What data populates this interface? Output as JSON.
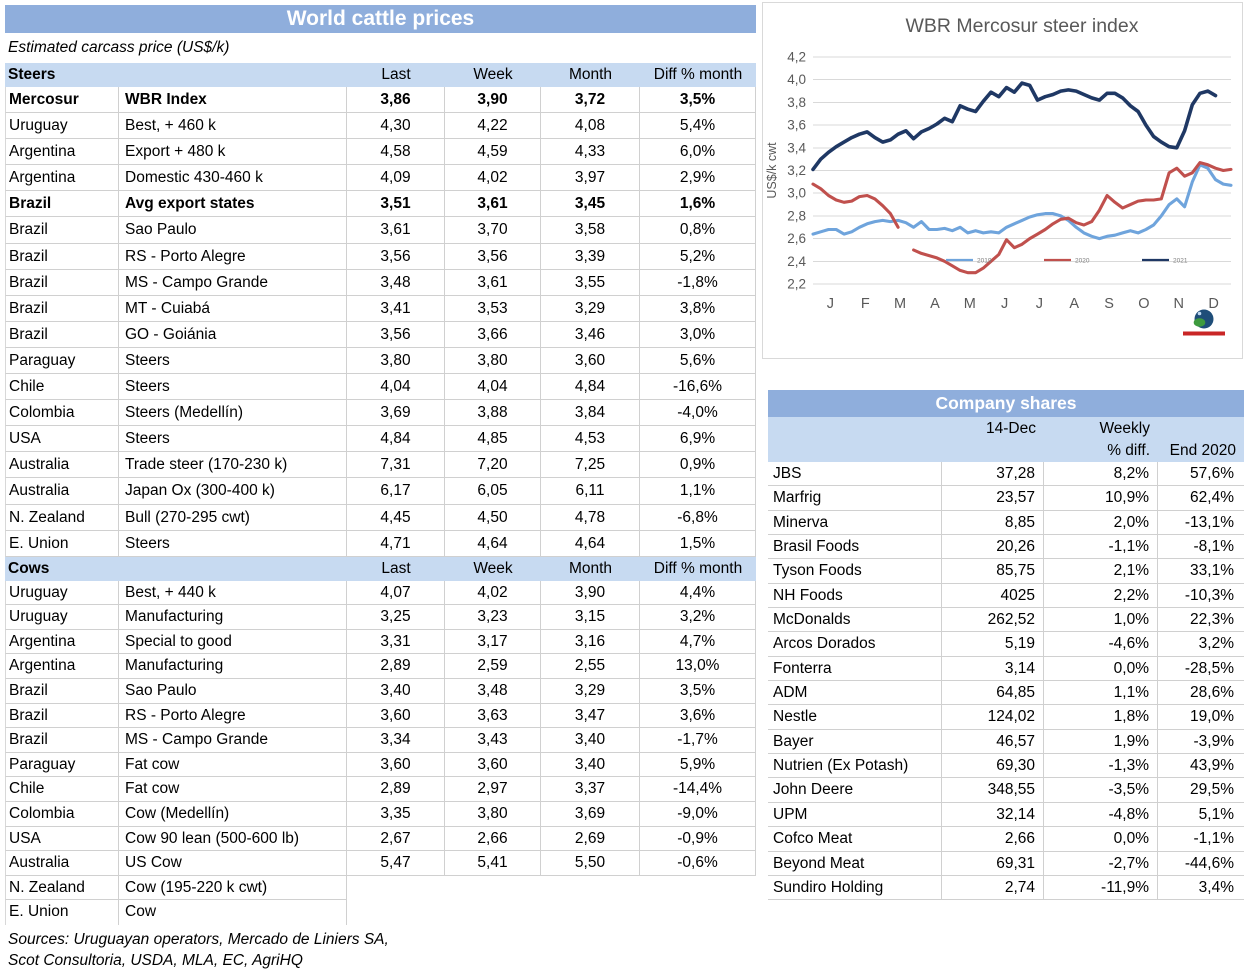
{
  "cattle_table": {
    "title": "World cattle prices",
    "subtitle": "Estimated carcass price (US$/k)",
    "columns": [
      "Last",
      "Week",
      "Month",
      "Diff % month"
    ],
    "sections": [
      {
        "name": "Steers",
        "rows": [
          {
            "country": "Mercosur",
            "item": "WBR Index",
            "last": "3,86",
            "week": "3,90",
            "month": "3,72",
            "diff": "3,5%",
            "bold": true
          },
          {
            "country": "Uruguay",
            "item": "Best, + 460 k",
            "last": "4,30",
            "week": "4,22",
            "month": "4,08",
            "diff": "5,4%"
          },
          {
            "country": "Argentina",
            "item": "Export + 480 k",
            "last": "4,58",
            "week": "4,59",
            "month": "4,33",
            "diff": "6,0%"
          },
          {
            "country": "Argentina",
            "item": "Domestic 430-460 k",
            "last": "4,09",
            "week": "4,02",
            "month": "3,97",
            "diff": "2,9%"
          },
          {
            "country": "Brazil",
            "item": "Avg export states",
            "last": "3,51",
            "week": "3,61",
            "month": "3,45",
            "diff": "1,6%",
            "bold": true
          },
          {
            "country": "Brazil",
            "item": "Sao Paulo",
            "last": "3,61",
            "week": "3,70",
            "month": "3,58",
            "diff": "0,8%"
          },
          {
            "country": "Brazil",
            "item": "RS - Porto Alegre",
            "last": "3,56",
            "week": "3,56",
            "month": "3,39",
            "diff": "5,2%"
          },
          {
            "country": "Brazil",
            "item": "MS - Campo Grande",
            "last": "3,48",
            "week": "3,61",
            "month": "3,55",
            "diff": "-1,8%"
          },
          {
            "country": "Brazil",
            "item": "MT - Cuiabá",
            "last": "3,41",
            "week": "3,53",
            "month": "3,29",
            "diff": "3,8%"
          },
          {
            "country": "Brazil",
            "item": "GO - Goiánia",
            "last": "3,56",
            "week": "3,66",
            "month": "3,46",
            "diff": "3,0%"
          },
          {
            "country": "Paraguay",
            "item": "Steers",
            "last": "3,80",
            "week": "3,80",
            "month": "3,60",
            "diff": "5,6%"
          },
          {
            "country": "Chile",
            "item": "Steers",
            "last": "4,04",
            "week": "4,04",
            "month": "4,84",
            "diff": "-16,6%"
          },
          {
            "country": "Colombia",
            "item": "Steers (Medellín)",
            "last": "3,69",
            "week": "3,88",
            "month": "3,84",
            "diff": "-4,0%"
          },
          {
            "country": "USA",
            "item": "Steers",
            "last": "4,84",
            "week": "4,85",
            "month": "4,53",
            "diff": "6,9%"
          },
          {
            "country": "Australia",
            "item": "Trade steer (170-230 k)",
            "last": "7,31",
            "week": "7,20",
            "month": "7,25",
            "diff": "0,9%"
          },
          {
            "country": "Australia",
            "item": "Japan Ox (300-400 k)",
            "last": "6,17",
            "week": "6,05",
            "month": "6,11",
            "diff": "1,1%"
          },
          {
            "country": "N. Zealand",
            "item": "Bull (270-295 cwt)",
            "last": "4,45",
            "week": "4,50",
            "month": "4,78",
            "diff": "-6,8%"
          },
          {
            "country": "E. Union",
            "item": "Steers",
            "last": "4,71",
            "week": "4,64",
            "month": "4,64",
            "diff": "1,5%"
          }
        ]
      },
      {
        "name": "Cows",
        "rows": [
          {
            "country": "Uruguay",
            "item": "Best, + 440 k",
            "last": "4,07",
            "week": "4,02",
            "month": "3,90",
            "diff": "4,4%"
          },
          {
            "country": "Uruguay",
            "item": "Manufacturing",
            "last": "3,25",
            "week": "3,23",
            "month": "3,15",
            "diff": "3,2%"
          },
          {
            "country": "Argentina",
            "item": "Special to good",
            "last": "3,31",
            "week": "3,17",
            "month": "3,16",
            "diff": "4,7%"
          },
          {
            "country": "Argentina",
            "item": "Manufacturing",
            "last": "2,89",
            "week": "2,59",
            "month": "2,55",
            "diff": "13,0%"
          },
          {
            "country": "Brazil",
            "item": "Sao Paulo",
            "last": "3,40",
            "week": "3,48",
            "month": "3,29",
            "diff": "3,5%"
          },
          {
            "country": "Brazil",
            "item": "RS - Porto Alegre",
            "last": "3,60",
            "week": "3,63",
            "month": "3,47",
            "diff": "3,6%"
          },
          {
            "country": "Brazil",
            "item": "MS - Campo Grande",
            "last": "3,34",
            "week": "3,43",
            "month": "3,40",
            "diff": "-1,7%"
          },
          {
            "country": "Paraguay",
            "item": "Fat cow",
            "last": "3,60",
            "week": "3,60",
            "month": "3,40",
            "diff": "5,9%"
          },
          {
            "country": "Chile",
            "item": "Fat cow",
            "last": "2,89",
            "week": "2,97",
            "month": "3,37",
            "diff": "-14,4%"
          },
          {
            "country": "Colombia",
            "item": "Cow (Medellín)",
            "last": "3,35",
            "week": "3,80",
            "month": "3,69",
            "diff": "-9,0%"
          },
          {
            "country": "USA",
            "item": "Cow 90 lean (500-600 lb)",
            "last": "2,67",
            "week": "2,66",
            "month": "2,69",
            "diff": "-0,9%"
          },
          {
            "country": "Australia",
            "item": "US Cow",
            "last": "5,47",
            "week": "5,41",
            "month": "5,50",
            "diff": "-0,6%"
          },
          {
            "country": "N. Zealand",
            "item": "Cow (195-220 k cwt)",
            "partial": true
          },
          {
            "country": "E. Union",
            "item": "Cow",
            "partial": true,
            "no_bottom": true
          }
        ]
      }
    ],
    "sources": [
      "Sources: Uruguayan operators, Mercado de Liniers SA,",
      "Scot Consultoria, USDA, MLA, EC, AgriHQ"
    ]
  },
  "chart_data": {
    "type": "line",
    "title": "WBR Mercosur steer index",
    "ylabel": "US$/k cwt",
    "xlabel": "",
    "x_tick_labels": [
      "J",
      "F",
      "M",
      "A",
      "M",
      "J",
      "J",
      "A",
      "S",
      "O",
      "N",
      "D"
    ],
    "y_ticks": [
      "4,2",
      "4,0",
      "3,8",
      "3,6",
      "3,4",
      "3,2",
      "3,0",
      "2,8",
      "2,6",
      "2,4",
      "2,2"
    ],
    "ylim": [
      2.2,
      4.2
    ],
    "ytick_step": 0.2,
    "grid": true,
    "legend_position": "inside-bottom-right",
    "series": [
      {
        "name": "2019",
        "color": "#6FA4DC",
        "values": [
          2.64,
          2.66,
          2.68,
          2.68,
          2.64,
          2.66,
          2.7,
          2.73,
          2.75,
          2.76,
          2.75,
          2.76,
          2.74,
          2.7,
          2.75,
          2.68,
          2.68,
          2.69,
          2.67,
          2.7,
          2.65,
          2.67,
          2.65,
          2.66,
          2.65,
          2.7,
          2.73,
          2.76,
          2.79,
          2.81,
          2.82,
          2.82,
          2.8,
          2.76,
          2.7,
          2.65,
          2.62,
          2.6,
          2.62,
          2.63,
          2.65,
          2.67,
          2.65,
          2.68,
          2.72,
          2.8,
          2.9,
          2.95,
          2.88,
          3.1,
          3.25,
          3.22,
          3.12,
          3.08,
          3.07
        ]
      },
      {
        "name": "2020",
        "color": "#C0504D",
        "values": [
          3.08,
          3.04,
          2.98,
          2.94,
          2.92,
          2.93,
          2.97,
          2.98,
          2.95,
          2.89,
          2.82,
          2.7,
          null,
          2.5,
          2.47,
          2.45,
          2.43,
          2.4,
          2.36,
          2.32,
          2.3,
          2.3,
          2.34,
          2.4,
          2.46,
          2.59,
          2.52,
          2.55,
          2.6,
          2.64,
          2.68,
          2.73,
          2.77,
          2.78,
          2.74,
          2.72,
          2.75,
          2.85,
          2.98,
          2.92,
          2.87,
          2.9,
          2.93,
          2.94,
          2.94,
          2.95,
          3.18,
          3.22,
          3.15,
          3.18,
          3.27,
          3.25,
          3.22,
          3.2,
          3.21
        ]
      },
      {
        "name": "2021",
        "color": "#1F3864",
        "values": [
          3.21,
          3.3,
          3.36,
          3.41,
          3.45,
          3.49,
          3.52,
          3.54,
          3.49,
          3.45,
          3.47,
          3.52,
          3.55,
          3.48,
          3.54,
          3.57,
          3.61,
          3.66,
          3.63,
          3.77,
          3.74,
          3.72,
          3.81,
          3.89,
          3.85,
          3.93,
          3.89,
          3.97,
          3.95,
          3.82,
          3.85,
          3.87,
          3.9,
          3.91,
          3.9,
          3.87,
          3.84,
          3.82,
          3.88,
          3.88,
          3.84,
          3.77,
          3.72,
          3.6,
          3.5,
          3.45,
          3.41,
          3.4,
          3.55,
          3.78,
          3.88,
          3.9,
          3.86,
          null,
          null
        ]
      }
    ]
  },
  "company_table": {
    "title": "Company shares",
    "header": {
      "date": "14-Dec",
      "weekly1": "Weekly",
      "weekly2": "% diff.",
      "end2020": "End 2020"
    },
    "rows": [
      {
        "name": "JBS",
        "value": "37,28",
        "weekly": "8,2%",
        "end": "57,6%"
      },
      {
        "name": "Marfrig",
        "value": "23,57",
        "weekly": "10,9%",
        "end": "62,4%"
      },
      {
        "name": "Minerva",
        "value": "8,85",
        "weekly": "2,0%",
        "end": "-13,1%"
      },
      {
        "name": "Brasil Foods",
        "value": "20,26",
        "weekly": "-1,1%",
        "end": "-8,1%"
      },
      {
        "name": "Tyson Foods",
        "value": "85,75",
        "weekly": "2,1%",
        "end": "33,1%"
      },
      {
        "name": "NH Foods",
        "value": "4025",
        "weekly": "2,2%",
        "end": "-10,3%"
      },
      {
        "name": "McDonalds",
        "value": "262,52",
        "weekly": "1,0%",
        "end": "22,3%"
      },
      {
        "name": "Arcos Dorados",
        "value": "5,19",
        "weekly": "-4,6%",
        "end": "3,2%"
      },
      {
        "name": "Fonterra",
        "value": "3,14",
        "weekly": "0,0%",
        "end": "-28,5%"
      },
      {
        "name": "ADM",
        "value": "64,85",
        "weekly": "1,1%",
        "end": "28,6%"
      },
      {
        "name": "Nestle",
        "value": "124,02",
        "weekly": "1,8%",
        "end": "19,0%"
      },
      {
        "name": "Bayer",
        "value": "46,57",
        "weekly": "1,9%",
        "end": "-3,9%"
      },
      {
        "name": "Nutrien (Ex Potash)",
        "value": "69,30",
        "weekly": "-1,3%",
        "end": "43,9%"
      },
      {
        "name": "John Deere",
        "value": "348,55",
        "weekly": "-3,5%",
        "end": "29,5%"
      },
      {
        "name": "UPM",
        "value": "32,14",
        "weekly": "-4,8%",
        "end": "5,1%"
      },
      {
        "name": "Cofco Meat",
        "value": "2,66",
        "weekly": "0,0%",
        "end": "-1,1%"
      },
      {
        "name": "Beyond Meat",
        "value": "69,31",
        "weekly": "-2,7%",
        "end": "-44,6%"
      },
      {
        "name": "Sundiro Holding",
        "value": "2,74",
        "weekly": "-11,9%",
        "end": "3,4%"
      }
    ]
  },
  "colors": {
    "title_band": "#8FAEDC",
    "header_band": "#C7DAF1",
    "row_border": "#D0D0D0",
    "axis_text": "#595959",
    "grid_line": "#D9D9D9",
    "series_2019": "#6FA4DC",
    "series_2020": "#C0504D",
    "series_2021": "#1F3864"
  }
}
